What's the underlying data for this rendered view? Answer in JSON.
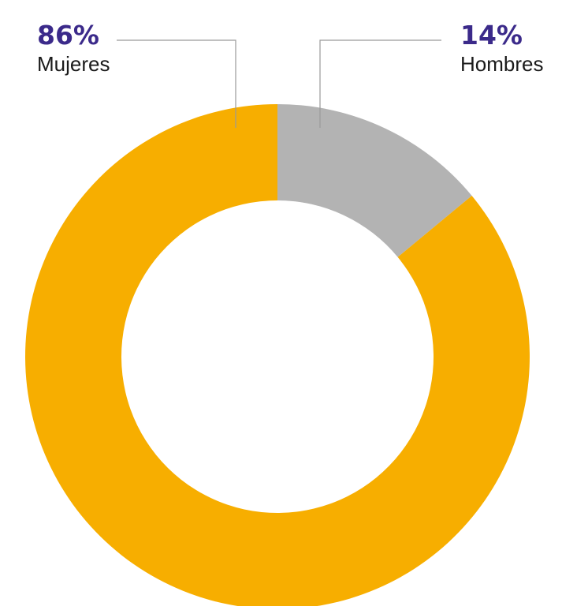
{
  "chart_data": {
    "type": "pie",
    "variant": "donut",
    "start_angle_deg": 0,
    "direction": "clockwise",
    "series": [
      {
        "name": "Hombres",
        "value": 14,
        "value_label": "14%",
        "color": "#b3b3b3"
      },
      {
        "name": "Mujeres",
        "value": 86,
        "value_label": "86%",
        "color": "#f7ae00"
      }
    ],
    "label_color": "#3b2a8a",
    "legend": "none"
  }
}
